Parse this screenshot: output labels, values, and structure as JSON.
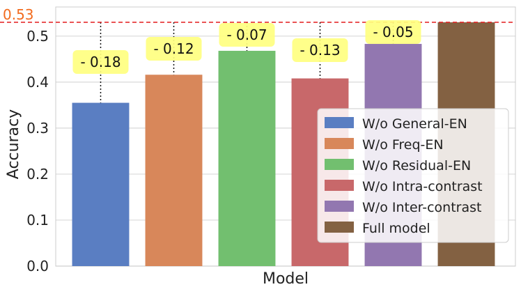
{
  "chart_data": {
    "type": "bar",
    "xlabel": "Model",
    "ylabel": "Accuracy",
    "ylim": [
      0,
      0.53
    ],
    "yticks": [
      "0.0",
      "0.1",
      "0.2",
      "0.3",
      "0.4",
      "0.5"
    ],
    "grid": true,
    "legend_position": "bottom-right",
    "reference_line": {
      "value": 0.53,
      "label": "0.53",
      "color": "#e31a1c"
    },
    "series": [
      {
        "name": "W/o General-EN",
        "value": 0.355,
        "diff_label": "- 0.18",
        "color": "#5a7ec2"
      },
      {
        "name": "W/o Freq-EN",
        "value": 0.416,
        "diff_label": "- 0.12",
        "color": "#d8875a"
      },
      {
        "name": "W/o Residual-EN",
        "value": 0.468,
        "diff_label": "- 0.07",
        "color": "#72bf6f"
      },
      {
        "name": "W/o Intra-contrast",
        "value": 0.408,
        "diff_label": "- 0.13",
        "color": "#c8686a"
      },
      {
        "name": "W/o Inter-contrast",
        "value": 0.483,
        "diff_label": "- 0.05",
        "color": "#9277b0"
      },
      {
        "name": "Full model",
        "value": 0.53,
        "diff_label": "",
        "color": "#836142"
      }
    ]
  },
  "colors": {
    "grid": "#d9d9d9",
    "label_box": "#ffff80",
    "ref_label": "#f26b1d",
    "axis_text": "#222222"
  }
}
